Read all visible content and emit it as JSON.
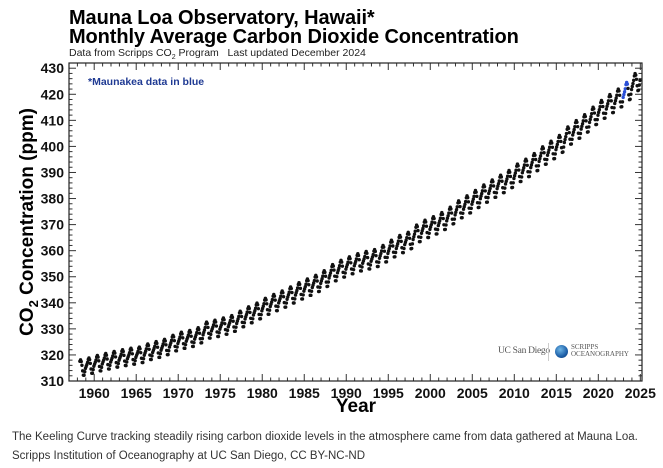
{
  "header": {
    "title_line1": "Mauna Loa Observatory, Hawaii*",
    "title_line2": "Monthly Average Carbon Dioxide Concentration",
    "subtitle_prefix": "Data from Scripps CO",
    "subtitle_sub": "2",
    "subtitle_suffix": " Program   Last updated December 2024"
  },
  "logos": {
    "ucsd": "UC San Diego",
    "scripps_line1": "SCRIPPS",
    "scripps_line2": "OCEANOGRAPHY"
  },
  "caption": {
    "line1": "The Keeling Curve tracking steadily rising carbon dioxide levels in the atmosphere came from data gathered at Mauna Loa.",
    "line2": "Scripps Institution of Oceanography at UC San Diego, CC BY-NC-ND"
  },
  "chart_data": {
    "type": "scatter",
    "title": "Mauna Loa Observatory, Hawaii* Monthly Average Carbon Dioxide Concentration",
    "xlabel": "Year",
    "ylabel_main": "CO",
    "ylabel_sub": "2",
    "ylabel_rest": " Concentration (ppm)",
    "annotation": "*Maunakea data in blue",
    "xlim": [
      1957,
      2025.2
    ],
    "ylim": [
      310,
      432
    ],
    "xticks": [
      1960,
      1965,
      1970,
      1975,
      1980,
      1985,
      1990,
      1995,
      2000,
      2005,
      2010,
      2015,
      2020,
      2025
    ],
    "yticks": [
      310,
      320,
      330,
      340,
      350,
      360,
      370,
      380,
      390,
      400,
      410,
      420,
      430
    ],
    "series_colors": {
      "mauna_loa": "#111111",
      "maunakea": "#2a4fd6"
    },
    "data_start": 1958.21,
    "data_end": 2024.96,
    "maunakea_range": [
      2022.9,
      2023.5
    ],
    "annual_mean_years": [
      1958,
      1959,
      1960,
      1961,
      1962,
      1963,
      1964,
      1965,
      1966,
      1967,
      1968,
      1969,
      1970,
      1971,
      1972,
      1973,
      1974,
      1975,
      1976,
      1977,
      1978,
      1979,
      1980,
      1981,
      1982,
      1983,
      1984,
      1985,
      1986,
      1987,
      1988,
      1989,
      1990,
      1991,
      1992,
      1993,
      1994,
      1995,
      1996,
      1997,
      1998,
      1999,
      2000,
      2001,
      2002,
      2003,
      2004,
      2005,
      2006,
      2007,
      2008,
      2009,
      2010,
      2011,
      2012,
      2013,
      2014,
      2015,
      2016,
      2017,
      2018,
      2019,
      2020,
      2021,
      2022,
      2023,
      2024
    ],
    "annual_mean_ppm": [
      315.2,
      315.9,
      316.9,
      317.6,
      318.4,
      319.0,
      319.6,
      320.0,
      321.3,
      322.1,
      323.0,
      324.6,
      325.7,
      326.3,
      327.4,
      329.7,
      330.2,
      331.1,
      332.0,
      333.8,
      335.4,
      336.8,
      338.7,
      340.1,
      341.4,
      343.0,
      344.6,
      346.0,
      347.4,
      349.2,
      351.6,
      353.1,
      354.4,
      355.6,
      356.4,
      357.1,
      358.8,
      360.8,
      362.6,
      363.7,
      366.7,
      368.4,
      369.7,
      371.3,
      373.4,
      375.9,
      377.7,
      379.8,
      381.9,
      383.8,
      385.6,
      387.4,
      389.9,
      391.7,
      393.9,
      396.5,
      398.6,
      400.8,
      404.2,
      406.5,
      408.7,
      411.7,
      414.2,
      416.4,
      418.5,
      421.1,
      424.6
    ],
    "seasonal_offset_ppm_by_month": [
      0.0,
      0.65,
      1.4,
      2.5,
      3.0,
      2.3,
      0.8,
      -1.4,
      -3.1,
      -3.2,
      -1.9,
      -0.7
    ]
  }
}
